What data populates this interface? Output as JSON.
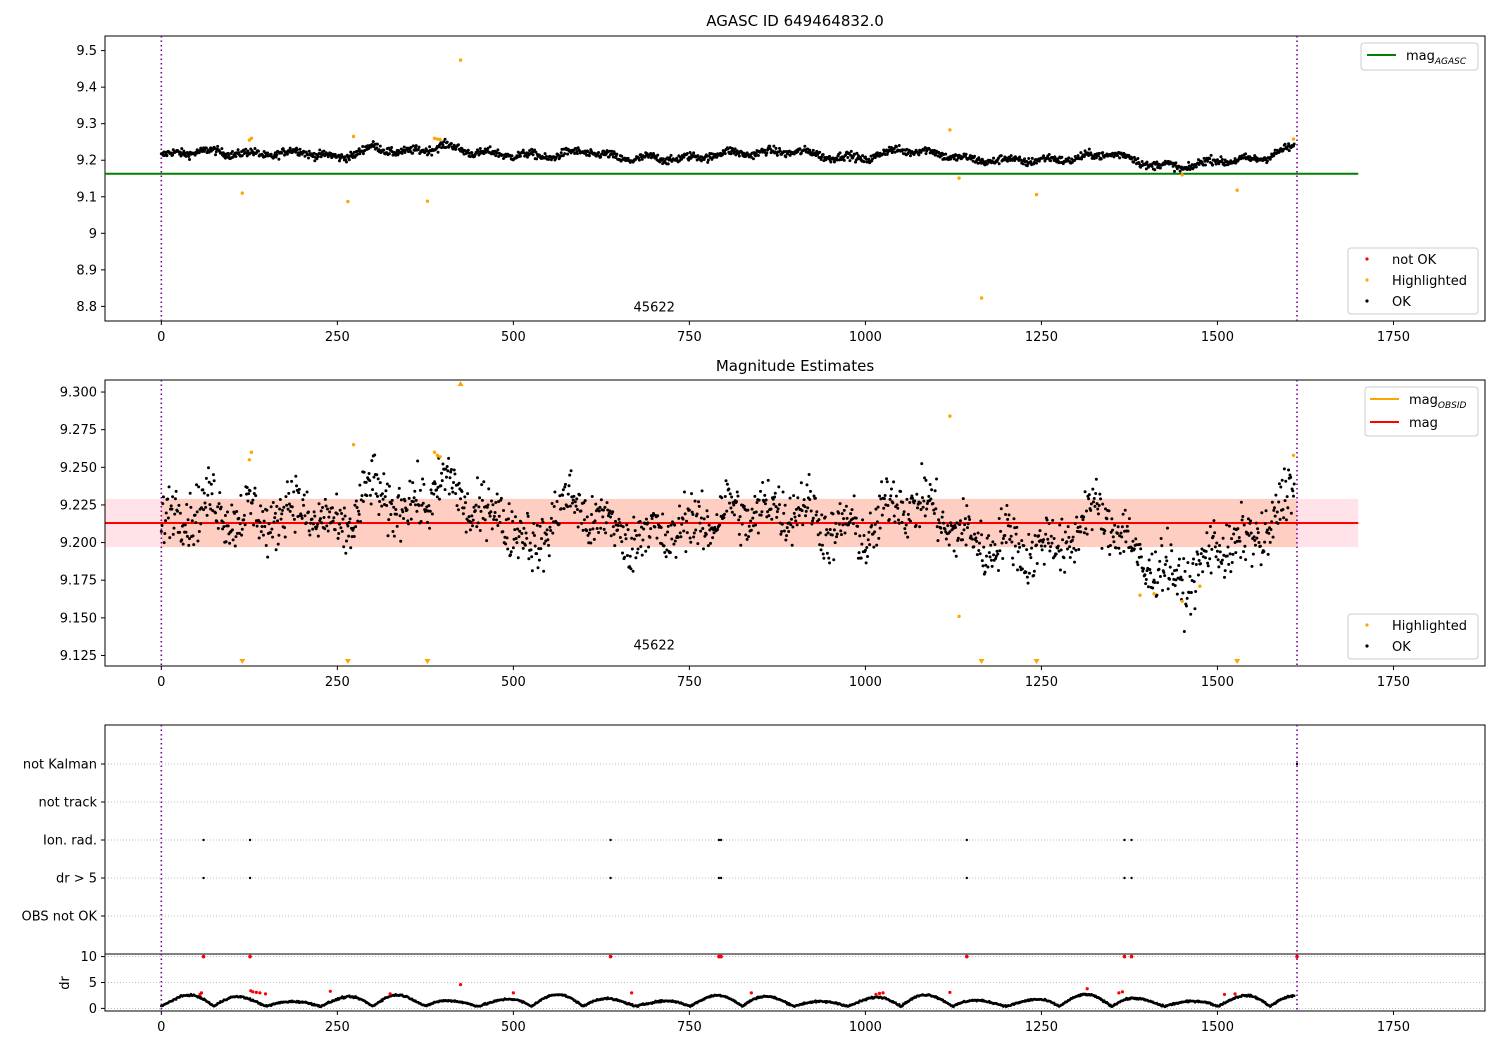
{
  "chart_data": [
    {
      "type": "scatter",
      "title": "AGASC ID 649464832.0",
      "xlabel": "",
      "ylabel": "",
      "xlim": [
        -80,
        1880
      ],
      "ylim": [
        8.76,
        9.54
      ],
      "x_ticks": [
        0,
        250,
        500,
        750,
        1000,
        1250,
        1500,
        1750
      ],
      "y_ticks": [
        8.8,
        8.9,
        9.0,
        9.1,
        9.2,
        9.3,
        9.4,
        9.5
      ],
      "grid": false,
      "reference_line": {
        "name": "mag_AGASC",
        "label_main": "mag",
        "label_sub": "AGASC",
        "value": 9.163,
        "x_range": [
          -80,
          1700
        ],
        "color": "#008000"
      },
      "vlines": [
        0,
        1613
      ],
      "annotation": {
        "text": "45622",
        "x": 808,
        "y": 8.8
      },
      "legend_lines": {
        "position": "top-right",
        "entries": [
          {
            "label_main": "mag",
            "label_sub": "AGASC",
            "color": "#008000"
          }
        ]
      },
      "legend_points": {
        "position": "bottom-right",
        "entries": [
          {
            "label": "not OK",
            "color": "#ff0000"
          },
          {
            "label": "Highlighted",
            "color": "#ffa500"
          },
          {
            "label": "OK",
            "color": "#000000"
          }
        ]
      },
      "ok_trend": {
        "x": [
          0,
          50,
          100,
          150,
          200,
          250,
          300,
          350,
          400,
          450,
          500,
          550,
          600,
          650,
          700,
          750,
          800,
          850,
          900,
          950,
          1000,
          1050,
          1100,
          1150,
          1200,
          1250,
          1300,
          1350,
          1400,
          1450,
          1500,
          1550,
          1610
        ],
        "y": [
          9.212,
          9.225,
          9.22,
          9.215,
          9.225,
          9.205,
          9.235,
          9.22,
          9.24,
          9.22,
          9.215,
          9.21,
          9.225,
          9.205,
          9.205,
          9.205,
          9.22,
          9.22,
          9.225,
          9.21,
          9.205,
          9.23,
          9.22,
          9.2,
          9.2,
          9.2,
          9.205,
          9.22,
          9.19,
          9.18,
          9.2,
          9.2,
          9.235
        ],
        "noise": 0.008,
        "count": 1610
      },
      "highlighted": {
        "x": [
          115,
          125,
          128,
          265,
          273,
          378,
          388,
          392,
          396,
          425,
          1120,
          1133,
          1165,
          1243,
          1450,
          1528,
          1608
        ],
        "y": [
          9.11,
          9.255,
          9.26,
          9.087,
          9.265,
          9.088,
          9.26,
          9.258,
          9.257,
          9.474,
          9.283,
          9.151,
          8.823,
          9.106,
          9.16,
          9.118,
          9.258
        ]
      }
    },
    {
      "type": "scatter",
      "title": "Magnitude Estimates",
      "xlabel": "",
      "ylabel": "",
      "xlim": [
        -80,
        1880
      ],
      "ylim": [
        9.118,
        9.308
      ],
      "x_ticks": [
        0,
        250,
        500,
        750,
        1000,
        1250,
        1500,
        1750
      ],
      "y_ticks": [
        9.125,
        9.15,
        9.175,
        9.2,
        9.225,
        9.25,
        9.275,
        9.3
      ],
      "y_tick_labels": [
        "9.125",
        "9.150",
        "9.175",
        "9.200",
        "9.225",
        "9.250",
        "9.275",
        "9.300"
      ],
      "grid": false,
      "mag_line": {
        "value": 9.213,
        "x_range": [
          -80,
          1700
        ],
        "color": "#ff0000"
      },
      "mag_band": {
        "y_range": [
          9.197,
          9.229
        ],
        "x_range": [
          -80,
          1700
        ]
      },
      "obsid_band": {
        "y_range": [
          9.197,
          9.229
        ],
        "x_range": [
          0,
          1613
        ],
        "value": 9.213
      },
      "vlines": [
        0,
        1613
      ],
      "annotation": {
        "text": "45622",
        "x": 808,
        "y": 9.125
      },
      "legend_lines": {
        "position": "top-right",
        "entries": [
          {
            "label_main": "mag",
            "label_sub": "OBSID",
            "color": "#ffa500"
          },
          {
            "label_main": "mag",
            "label_sub": "",
            "color": "#ff0000"
          }
        ]
      },
      "legend_points": {
        "position": "bottom-right",
        "entries": [
          {
            "label": "Highlighted",
            "color": "#ffa500"
          },
          {
            "label": "OK",
            "color": "#000000"
          }
        ]
      },
      "ok_trend": {
        "x": [
          0,
          50,
          100,
          150,
          200,
          250,
          300,
          350,
          400,
          450,
          500,
          530,
          560,
          600,
          650,
          700,
          750,
          800,
          850,
          900,
          950,
          1000,
          1050,
          1100,
          1150,
          1200,
          1250,
          1300,
          1330,
          1360,
          1400,
          1450,
          1480,
          1500,
          1550,
          1610
        ],
        "y": [
          9.212,
          9.225,
          9.22,
          9.215,
          9.225,
          9.205,
          9.235,
          9.22,
          9.24,
          9.22,
          9.215,
          9.19,
          9.225,
          9.222,
          9.205,
          9.205,
          9.21,
          9.22,
          9.22,
          9.225,
          9.21,
          9.205,
          9.23,
          9.22,
          9.2,
          9.2,
          9.195,
          9.205,
          9.225,
          9.205,
          9.185,
          9.175,
          9.182,
          9.2,
          9.198,
          9.235
        ],
        "noise": 0.013,
        "count": 1610
      },
      "highlighted": {
        "x": [
          125,
          128,
          273,
          388,
          392,
          396,
          1120,
          1133,
          1390,
          1410,
          1450,
          1475,
          1608
        ],
        "y": [
          9.255,
          9.26,
          9.265,
          9.26,
          9.258,
          9.257,
          9.284,
          9.151,
          9.165,
          9.166,
          9.161,
          9.171,
          9.258
        ]
      },
      "clipped_low": [
        115,
        265,
        378,
        1165,
        1243,
        1528
      ],
      "clipped_high": [
        425
      ]
    },
    {
      "type": "scatter",
      "title": "",
      "xlabel": "",
      "ylabel": "",
      "xlim": [
        -80,
        1880
      ],
      "categories": [
        "not Kalman",
        "not track",
        "Ion. rad.",
        "dr > 5",
        "OBS not OK"
      ],
      "flag_points": {
        "not Kalman": [
          1613
        ],
        "not track": [],
        "Ion. rad.": [
          60,
          126,
          638,
          792,
          795,
          1144,
          1368,
          1378
        ],
        "dr > 5": [
          60,
          126,
          638,
          792,
          795,
          1144,
          1368,
          1378
        ],
        "OBS not OK": []
      },
      "vlines": [
        0,
        1613
      ]
    },
    {
      "type": "scatter",
      "title": "",
      "xlabel": "",
      "ylabel": "dr",
      "xlim": [
        -80,
        1880
      ],
      "ylim": [
        -0.5,
        10.5
      ],
      "x_ticks": [
        0,
        250,
        500,
        750,
        1000,
        1250,
        1500,
        1750
      ],
      "y_ticks": [
        0,
        5,
        10
      ],
      "vlines": [
        0,
        1613
      ],
      "saturated_x": [
        60,
        126,
        638,
        792,
        795,
        1144,
        1368,
        1378,
        1613
      ],
      "red_x": [
        55,
        57,
        127,
        130,
        135,
        140,
        148,
        240,
        325,
        425,
        500,
        668,
        838,
        1015,
        1020,
        1025,
        1120,
        1315,
        1360,
        1365,
        1510,
        1525
      ],
      "red_y": [
        2.7,
        3.0,
        3.4,
        3.2,
        3.1,
        3.0,
        2.8,
        3.3,
        2.8,
        4.6,
        3.0,
        3.0,
        3.0,
        2.7,
        2.9,
        3.0,
        3.1,
        3.8,
        3.0,
        3.2,
        2.7,
        2.8
      ],
      "trend_period": 75,
      "trend_base": 0.4,
      "trend_amp": 2.3,
      "count": 1610
    }
  ]
}
